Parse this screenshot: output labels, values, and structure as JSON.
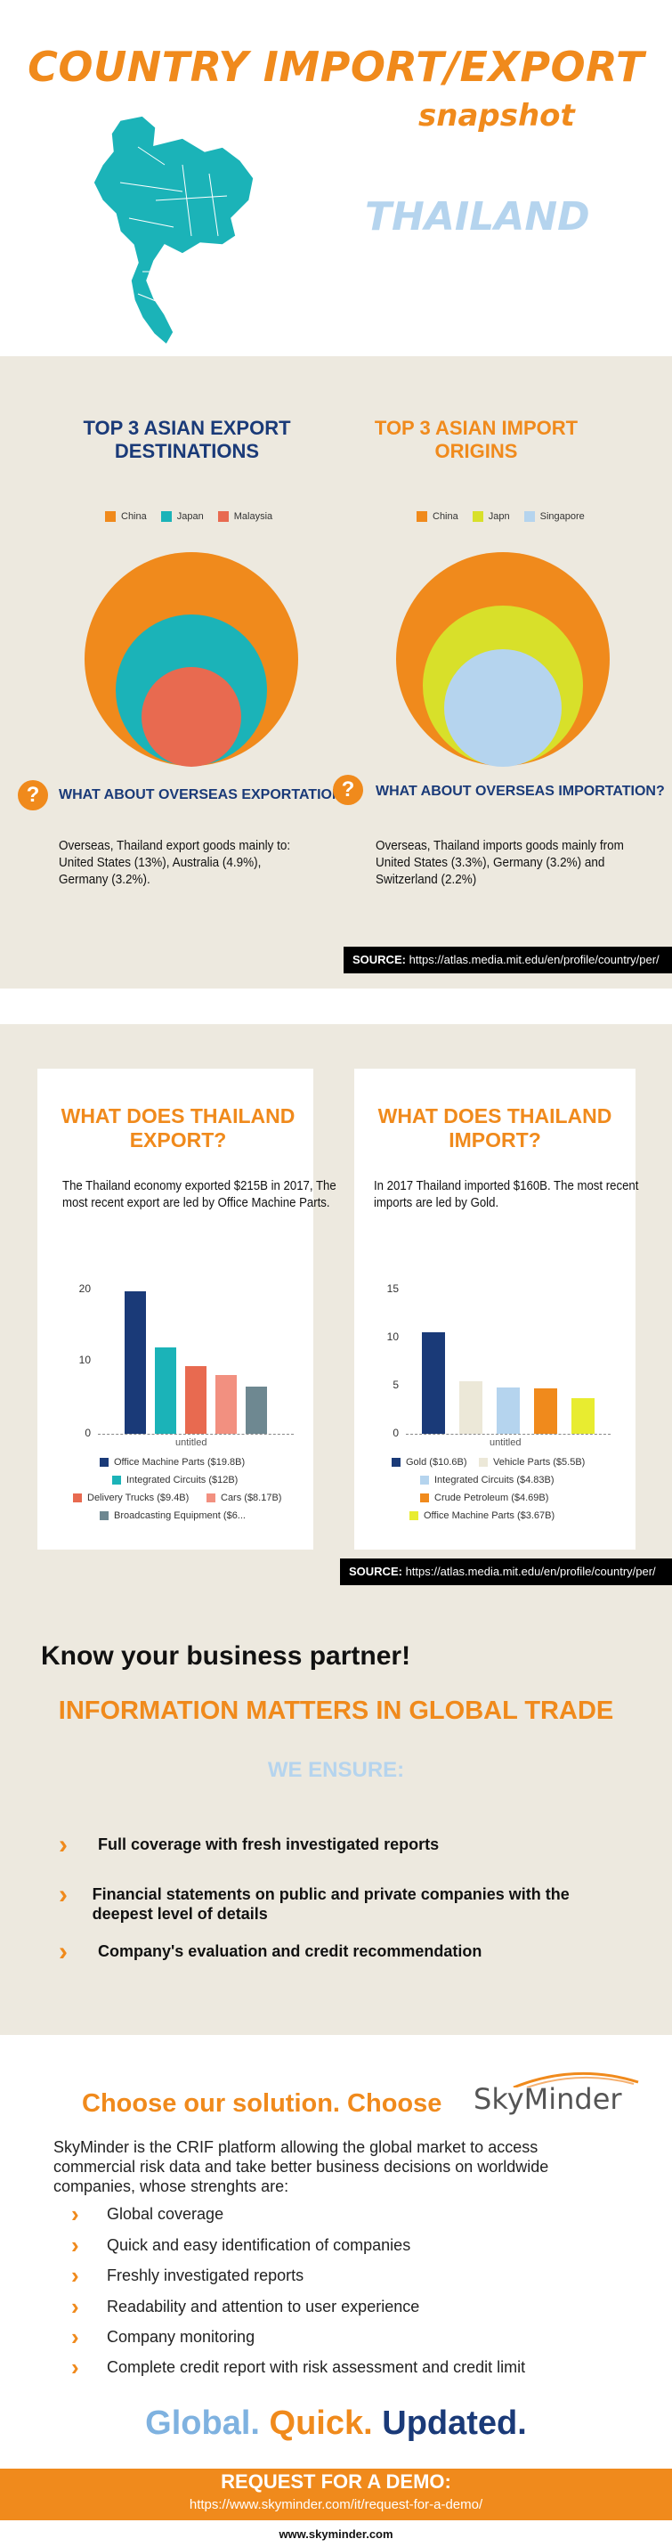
{
  "header": {
    "title_line1": "COUNTRY IMPORT/EXPORT",
    "title_line2": "snapshot",
    "country": "THAILAND"
  },
  "colors": {
    "accent": "#f08a1c",
    "navy": "#1a3a78",
    "light_blue": "#b5d4ee",
    "map": "#1bb3b8",
    "beige": "#ede9df"
  },
  "export_dest": {
    "title": "TOP 3 ASIAN EXPORT DESTINATIONS",
    "legend": [
      {
        "name": "China",
        "color": "#f08a1c"
      },
      {
        "name": "Japan",
        "color": "#1bb3b8"
      },
      {
        "name": "Malaysia",
        "color": "#e86a50"
      }
    ],
    "question": "WHAT ABOUT OVERSEAS EXPORTATION?",
    "text": "Overseas, Thailand export goods mainly to: United States (13%), Australia (4.9%), Germany (3.2%)."
  },
  "import_orig": {
    "title": "TOP 3 ASIAN IMPORT ORIGINS",
    "legend": [
      {
        "name": "China",
        "color": "#f08a1c"
      },
      {
        "name": "Japn",
        "color": "#d8e02a"
      },
      {
        "name": "Singapore",
        "color": "#b5d4ee"
      }
    ],
    "question": "WHAT ABOUT OVERSEAS IMPORTATION?",
    "text": "Overseas, Thailand imports goods mainly  from United States (3.3%), Germany (3.2%) and Switzerland (2.2%)"
  },
  "source": {
    "label": "SOURCE:",
    "url": "https://atlas.media.mit.edu/en/profile/country/per/"
  },
  "export_card": {
    "title": "WHAT DOES THAILAND EXPORT?",
    "text": "The Thailand economy exported $215B in 2017, The most recent export are led by Office Machine Parts."
  },
  "import_card": {
    "title": "WHAT DOES THAILAND IMPORT?",
    "text": "In 2017 Thailand  imported $160B. The most recent imports are led by Gold."
  },
  "chart_data": [
    {
      "type": "bar",
      "title": "",
      "xlabel": "untitled",
      "ylabel": "",
      "ylim": [
        0,
        20
      ],
      "yticks": [
        "20",
        "10",
        "0"
      ],
      "series": [
        {
          "name": "Office Machine Parts ($19.8B)",
          "value": 19.8,
          "color": "#1a3a78"
        },
        {
          "name": "Integrated Circuits ($12B)",
          "value": 12,
          "color": "#1bb3b8"
        },
        {
          "name": "Delivery Trucks ($9.4B)",
          "value": 9.4,
          "color": "#e86a50"
        },
        {
          "name": "Cars ($8.17B)",
          "value": 8.17,
          "color": "#f29080"
        },
        {
          "name": "Broadcasting Equipment ($6...",
          "value": 6.6,
          "color": "#6e8891"
        }
      ]
    },
    {
      "type": "bar",
      "title": "",
      "xlabel": "untitled",
      "ylabel": "",
      "ylim": [
        0,
        15
      ],
      "yticks": [
        "15",
        "10",
        "5",
        "0"
      ],
      "series": [
        {
          "name": "Gold ($10.6B)",
          "value": 10.6,
          "color": "#1a3a78"
        },
        {
          "name": "Vehicle Parts ($5.5B)",
          "value": 5.5,
          "color": "#ece8d8"
        },
        {
          "name": "Integrated Circuits ($4.83B)",
          "value": 4.83,
          "color": "#b5d4ee"
        },
        {
          "name": "Crude Petroleum ($4.69B)",
          "value": 4.69,
          "color": "#f08a1c"
        },
        {
          "name": "Office Machine Parts ($3.67B)",
          "value": 3.67,
          "color": "#e8ec30"
        }
      ]
    }
  ],
  "partner": {
    "heading": "Know your business partner!",
    "subheading": "INFORMATION MATTERS IN GLOBAL TRADE",
    "ensure": "WE ENSURE:",
    "items": [
      "Full coverage with fresh investigated reports",
      "Financial statements on public and private companies with the deepest level of details",
      "Company's evaluation and credit recommendation"
    ]
  },
  "solution": {
    "heading": "Choose our solution. Choose",
    "brand": "SkyMinder",
    "text": "SkyMinder is the CRIF platform allowing the global market to access commercial risk data and take better business decisions on worldwide companies, whose strenghts are:",
    "features": [
      "Global coverage",
      "Quick and easy identification of companies",
      "Freshly investigated reports",
      "Readability and attention to user experience",
      "Company monitoring",
      "Complete credit report with risk assessment and credit limit"
    ]
  },
  "slogan": {
    "w1": "Global.",
    "w2": "Quick.",
    "w3": "Updated."
  },
  "demo": {
    "title": "REQUEST FOR A DEMO:",
    "url": "https://www.skyminder.com/it/request-for-a-demo/",
    "site": "www.skyminder.com"
  }
}
